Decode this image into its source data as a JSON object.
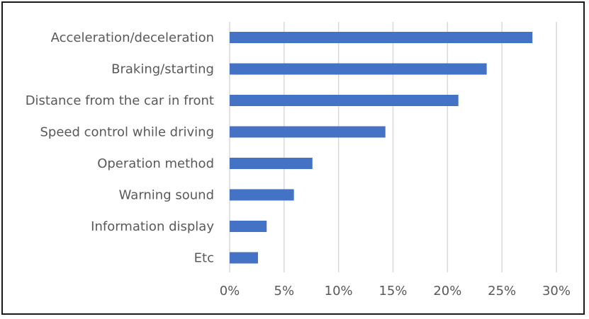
{
  "chart_data": {
    "type": "bar",
    "orientation": "horizontal",
    "categories": [
      "Acceleration/deceleration",
      "Braking/starting",
      "Distance from the car in front",
      "Speed control while driving",
      "Operation method",
      "Warning sound",
      "Information display",
      "Etc"
    ],
    "values": [
      27.8,
      23.6,
      21.0,
      14.3,
      7.6,
      5.9,
      3.4,
      2.6
    ],
    "value_unit": "%",
    "xlim": [
      0,
      30
    ],
    "xticks": [
      0,
      5,
      10,
      15,
      20,
      25,
      30
    ],
    "xtick_labels": [
      "0%",
      "5%",
      "10%",
      "15%",
      "20%",
      "25%",
      "30%"
    ],
    "title": "",
    "xlabel": "",
    "ylabel": "",
    "grid": "vertical",
    "legend": "none",
    "bar_color": "#4472C4",
    "grid_color": "#D9D9D9"
  }
}
